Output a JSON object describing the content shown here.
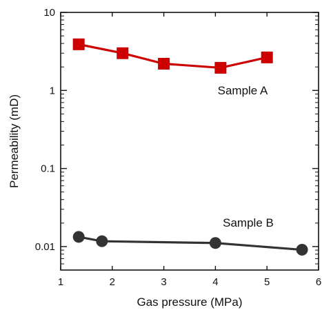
{
  "chart_data": {
    "type": "line",
    "title": "",
    "xlabel": "Gas pressure (MPa)",
    "ylabel": "Permeability (mD)",
    "xlim": [
      1,
      6
    ],
    "ylim": [
      0.005,
      10
    ],
    "yscale": "log",
    "x_ticks": [
      1,
      2,
      3,
      4,
      5,
      6
    ],
    "x_tick_labels": [
      "1",
      "2",
      "3",
      "4",
      "5",
      "6"
    ],
    "y_ticks": [
      0.01,
      0.1,
      1,
      10
    ],
    "y_tick_labels": [
      "0.01",
      "0.1",
      "1",
      "10"
    ],
    "grid": false,
    "legend": "none",
    "series": [
      {
        "name": "Sample A",
        "marker": "square",
        "color": "#cc0000",
        "x": [
          1.35,
          2.2,
          3.0,
          4.1,
          5.0
        ],
        "y": [
          3.9,
          3.0,
          2.2,
          1.95,
          2.65
        ]
      },
      {
        "name": "Sample B",
        "marker": "circle",
        "color": "#333333",
        "x": [
          1.35,
          1.8,
          4.0,
          5.68
        ],
        "y": [
          0.0133,
          0.0117,
          0.0111,
          0.0091
        ]
      }
    ]
  }
}
